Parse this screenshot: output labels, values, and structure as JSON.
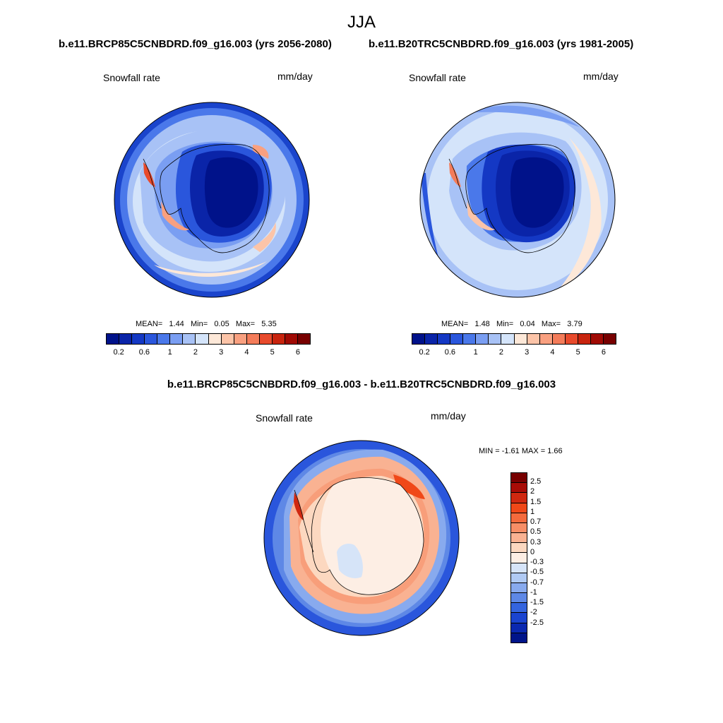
{
  "title": "JJA",
  "panels": [
    {
      "run": "b.e11.BRCP85C5CNBDRD.f09_g16.003 (yrs 2056-2080)",
      "variable": "Snowfall rate",
      "units": "mm/day",
      "stats": {
        "mean": "MEAN=",
        "mean_val": "1.44",
        "min": "Min=",
        "min_val": "0.05",
        "max": "Max=",
        "max_val": "5.35"
      }
    },
    {
      "run": "b.e11.B20TRC5CNBDRD.f09_g16.003 (yrs 1981-2005)",
      "variable": "Snowfall rate",
      "units": "mm/day",
      "stats": {
        "mean": "MEAN=",
        "mean_val": "1.48",
        "min": "Min=",
        "min_val": "0.04",
        "max": "Max=",
        "max_val": "3.79"
      }
    }
  ],
  "abs_colorbar": {
    "colors": [
      "#00128a",
      "#0a24a8",
      "#1438c4",
      "#2a56dc",
      "#4a78ea",
      "#7a9ef2",
      "#a8c2f6",
      "#d4e4fa",
      "#fde8d8",
      "#fcc4a8",
      "#f9a080",
      "#f47c5a",
      "#e84a2c",
      "#c8240e",
      "#a00a04",
      "#780000"
    ],
    "tick_labels": [
      "0.2",
      "0.6",
      "1",
      "2",
      "3",
      "4",
      "5",
      "6"
    ]
  },
  "diff_panel": {
    "title": "b.e11.BRCP85C5CNBDRD.f09_g16.003 - b.e11.B20TRC5CNBDRD.f09_g16.003",
    "variable": "Snowfall rate",
    "units": "mm/day",
    "minmax": "MIN =  -1.61 MAX =   1.66"
  },
  "diff_colorbar": {
    "colors": [
      "#780000",
      "#a80c06",
      "#d02810",
      "#f04818",
      "#f46a3c",
      "#f78e66",
      "#f9b292",
      "#fcd8c0",
      "#fdeee4",
      "#d6e4f8",
      "#b0caf4",
      "#88aaee",
      "#5e88e6",
      "#3464de",
      "#1a44d0",
      "#0a28b0",
      "#00148a"
    ],
    "tick_labels": [
      "2.5",
      "2",
      "1.5",
      "1",
      "0.7",
      "0.5",
      "0.3",
      "0",
      "-0.3",
      "-0.5",
      "-0.7",
      "-1",
      "-1.5",
      "-2",
      "-2.5"
    ]
  },
  "legend": {
    "mean_key": "MEAN",
    "min_key": "Min",
    "max_key": "Max"
  }
}
